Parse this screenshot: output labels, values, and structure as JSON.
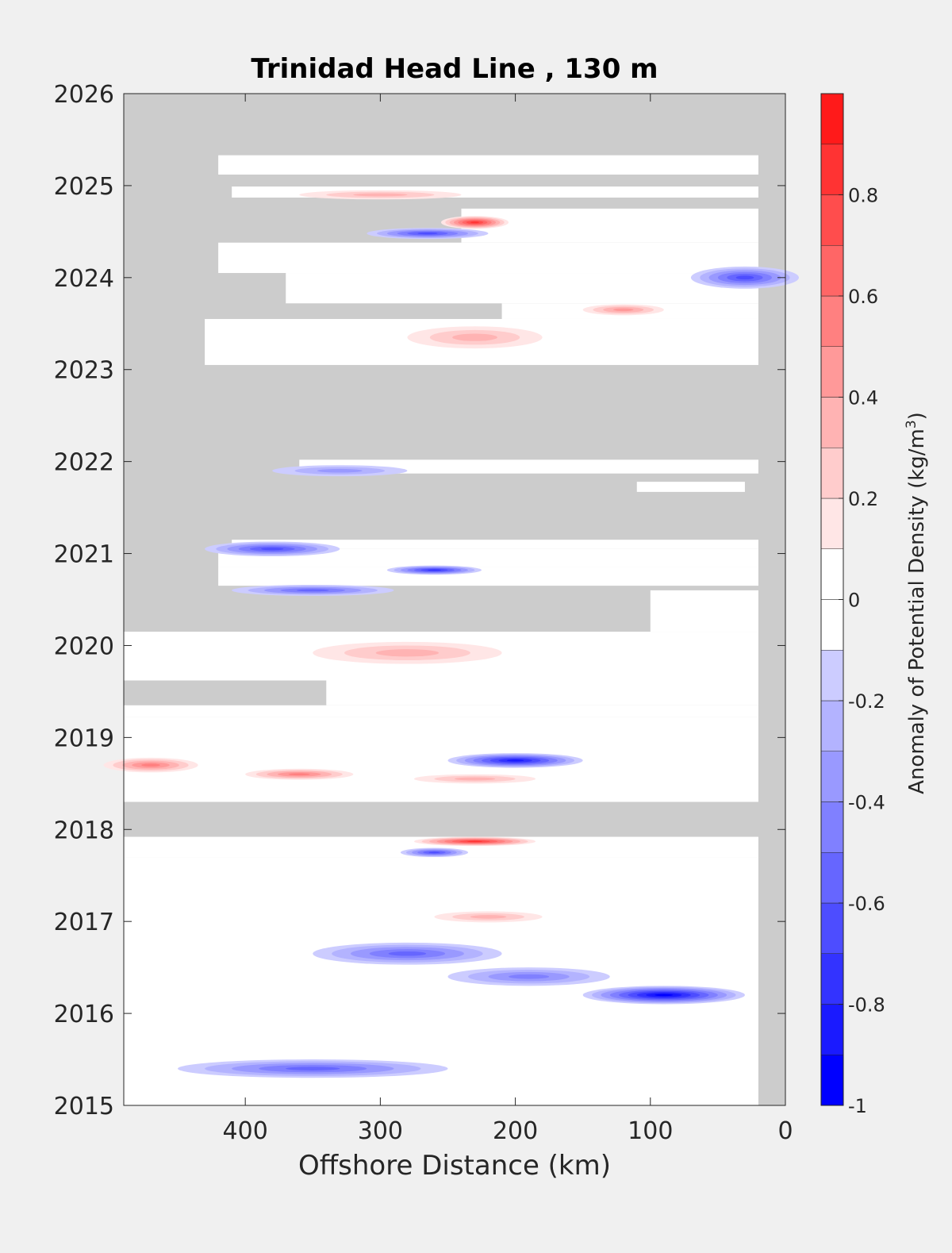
{
  "chart_data": {
    "type": "heatmap",
    "title": "Trinidad Head Line , 130 m",
    "xlabel": "Offshore Distance (km)",
    "ylabel": "",
    "xlim": [
      490,
      0
    ],
    "ylim": [
      2015,
      2026
    ],
    "x_reversed": true,
    "xticks": [
      400,
      300,
      200,
      100,
      0
    ],
    "yticks": [
      2015,
      2016,
      2017,
      2018,
      2019,
      2020,
      2021,
      2022,
      2023,
      2024,
      2025,
      2026
    ],
    "colorbar": {
      "label_prefix": "Anomaly of Potential Density (kg/m",
      "label_sup": "3",
      "label_suffix": ")",
      "range": [
        -1,
        1
      ],
      "levels": [
        -1,
        -0.9,
        -0.8,
        -0.7,
        -0.6,
        -0.5,
        -0.4,
        -0.3,
        -0.2,
        -0.1,
        0,
        0.1,
        0.2,
        0.3,
        0.4,
        0.5,
        0.6,
        0.7,
        0.8,
        0.9,
        1
      ],
      "ticks": [
        -1,
        -0.8,
        -0.6,
        -0.4,
        -0.2,
        0,
        0.2,
        0.4,
        0.6,
        0.8
      ],
      "tick_labels": [
        "-1",
        "-0.8",
        "-0.6",
        "-0.4",
        "-0.2",
        "0",
        "0.2",
        "0.4",
        "0.6",
        "0.8"
      ],
      "colors": [
        "#0000ff",
        "#1a1aff",
        "#3333ff",
        "#4d4dff",
        "#6666ff",
        "#8080ff",
        "#9999ff",
        "#b3b3ff",
        "#ccccff",
        "#e6e6ff",
        "#ffffff",
        "#ffffff",
        "#ffe6e6",
        "#ffcccc",
        "#ffb3b3",
        "#ff9999",
        "#ff8080",
        "#ff6666",
        "#ff4d4d",
        "#ff3333",
        "#ff1a1a",
        "#ff0000"
      ]
    },
    "missing_color": "#cccccc",
    "grid": false,
    "coverage": [
      {
        "t0": 2025.33,
        "t1": 2025.12,
        "x0": 420,
        "x1": 20
      },
      {
        "t0": 2024.99,
        "t1": 2024.87,
        "x0": 410,
        "x1": 20
      },
      {
        "t0": 2024.75,
        "t1": 2024.38,
        "x0": 240,
        "x1": 20
      },
      {
        "t0": 2024.38,
        "t1": 2024.05,
        "x0": 420,
        "x1": 20
      },
      {
        "t0": 2024.05,
        "t1": 2023.72,
        "x0": 370,
        "x1": 20
      },
      {
        "t0": 2023.72,
        "t1": 2023.55,
        "x0": 210,
        "x1": 20
      },
      {
        "t0": 2023.55,
        "t1": 2023.05,
        "x0": 430,
        "x1": 20
      },
      {
        "t0": 2022.02,
        "t1": 2021.87,
        "x0": 360,
        "x1": 20
      },
      {
        "t0": 2021.78,
        "t1": 2021.67,
        "x0": 110,
        "x1": 30
      },
      {
        "t0": 2021.15,
        "t1": 2021.05,
        "x0": 410,
        "x1": 20
      },
      {
        "t0": 2021.05,
        "t1": 2020.85,
        "x0": 420,
        "x1": 20
      },
      {
        "t0": 2020.85,
        "t1": 2020.65,
        "x0": 420,
        "x1": 20
      },
      {
        "t0": 2020.6,
        "t1": 2020.15,
        "x0": 100,
        "x1": 20
      },
      {
        "t0": 2020.15,
        "t1": 2019.62,
        "x0": 490,
        "x1": 20
      },
      {
        "t0": 2019.62,
        "t1": 2019.35,
        "x0": 340,
        "x1": 20
      },
      {
        "t0": 2019.35,
        "t1": 2019.22,
        "x0": 490,
        "x1": 20
      },
      {
        "t0": 2019.22,
        "t1": 2018.3,
        "x0": 490,
        "x1": 20
      },
      {
        "t0": 2017.92,
        "t1": 2017.7,
        "x0": 490,
        "x1": 20
      },
      {
        "t0": 2017.7,
        "t1": 2015.0,
        "x0": 490,
        "x1": 20
      }
    ],
    "anomalies": [
      {
        "x": 230,
        "t": 2024.6,
        "v": 0.8,
        "rx": 25,
        "rt": 0.07
      },
      {
        "x": 265,
        "t": 2024.48,
        "v": -0.55,
        "rx": 45,
        "rt": 0.06
      },
      {
        "x": 30,
        "t": 2024.0,
        "v": -0.55,
        "rx": 40,
        "rt": 0.12
      },
      {
        "x": 120,
        "t": 2023.65,
        "v": 0.4,
        "rx": 30,
        "rt": 0.06
      },
      {
        "x": 230,
        "t": 2023.35,
        "v": 0.3,
        "rx": 50,
        "rt": 0.12
      },
      {
        "x": 300,
        "t": 2024.9,
        "v": 0.25,
        "rx": 60,
        "rt": 0.05
      },
      {
        "x": 380,
        "t": 2021.05,
        "v": -0.55,
        "rx": 50,
        "rt": 0.08
      },
      {
        "x": 260,
        "t": 2020.82,
        "v": -0.65,
        "rx": 35,
        "rt": 0.05
      },
      {
        "x": 330,
        "t": 2021.9,
        "v": -0.35,
        "rx": 50,
        "rt": 0.06
      },
      {
        "x": 280,
        "t": 2019.92,
        "v": 0.35,
        "rx": 70,
        "rt": 0.12
      },
      {
        "x": 200,
        "t": 2018.75,
        "v": -0.8,
        "rx": 50,
        "rt": 0.08
      },
      {
        "x": 470,
        "t": 2018.7,
        "v": 0.5,
        "rx": 35,
        "rt": 0.08
      },
      {
        "x": 360,
        "t": 2018.6,
        "v": 0.5,
        "rx": 40,
        "rt": 0.06
      },
      {
        "x": 230,
        "t": 2018.55,
        "v": 0.35,
        "rx": 45,
        "rt": 0.05
      },
      {
        "x": 230,
        "t": 2017.87,
        "v": 0.8,
        "rx": 45,
        "rt": 0.05
      },
      {
        "x": 260,
        "t": 2017.75,
        "v": -0.6,
        "rx": 25,
        "rt": 0.05
      },
      {
        "x": 90,
        "t": 2016.2,
        "v": -0.85,
        "rx": 60,
        "rt": 0.1
      },
      {
        "x": 280,
        "t": 2016.65,
        "v": -0.45,
        "rx": 70,
        "rt": 0.12
      },
      {
        "x": 190,
        "t": 2016.4,
        "v": -0.4,
        "rx": 60,
        "rt": 0.1
      },
      {
        "x": 350,
        "t": 2015.4,
        "v": -0.45,
        "rx": 100,
        "rt": 0.1
      },
      {
        "x": 220,
        "t": 2017.05,
        "v": 0.35,
        "rx": 40,
        "rt": 0.06
      },
      {
        "x": 350,
        "t": 2020.6,
        "v": -0.45,
        "rx": 60,
        "rt": 0.06
      }
    ]
  }
}
